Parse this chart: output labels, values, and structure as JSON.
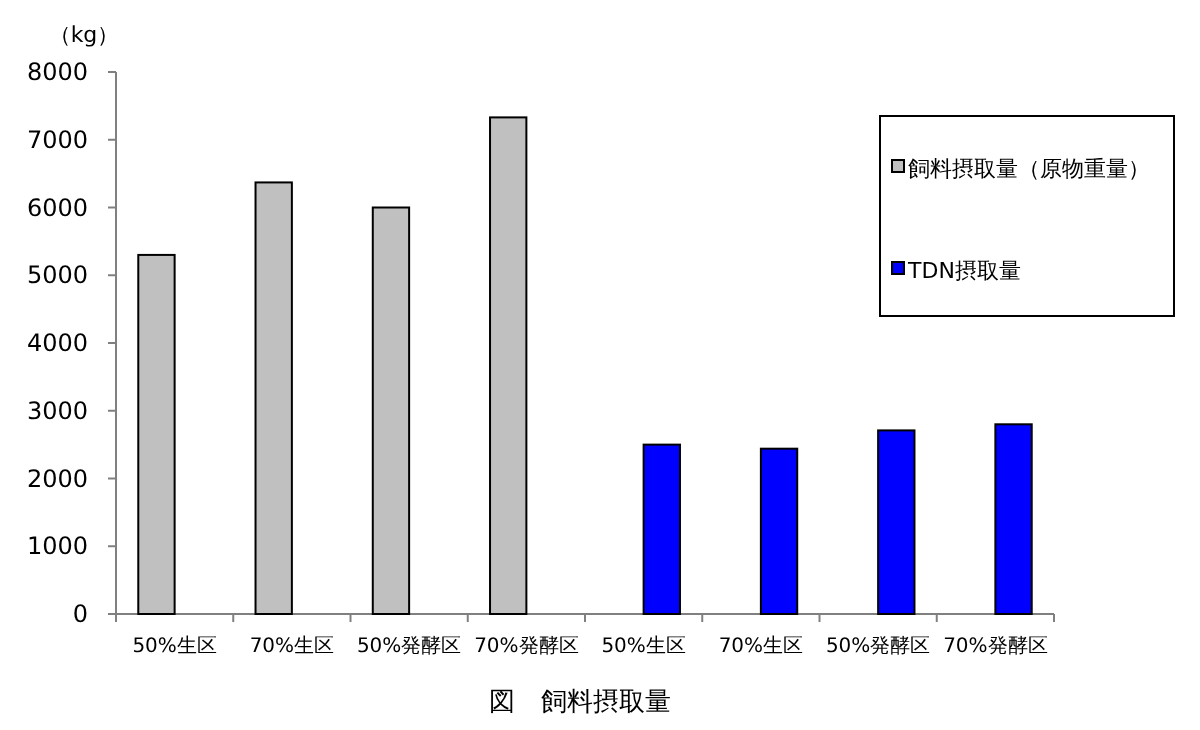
{
  "chart_data": {
    "type": "bar",
    "title": "図　飼料摂取量",
    "ylabel": "（kg）",
    "categories": [
      "50%生区",
      "70%生区",
      "50%発酵区",
      "70%発酵区",
      "50%生区",
      "70%生区",
      "50%発酵区",
      "70%発酵区"
    ],
    "series": [
      {
        "name": "飼料摂取量（原物重量）",
        "color": "#c0c0c0",
        "values": [
          5300,
          6370,
          6000,
          7330,
          null,
          null,
          null,
          null
        ]
      },
      {
        "name": "TDN摂取量",
        "color": "#0000ff",
        "values": [
          null,
          null,
          null,
          null,
          2500,
          2440,
          2710,
          2800
        ]
      }
    ],
    "ylim": [
      0,
      8000
    ],
    "yticks": [
      0,
      1000,
      2000,
      3000,
      4000,
      5000,
      6000,
      7000,
      8000
    ],
    "grid": false,
    "legend": "right"
  }
}
